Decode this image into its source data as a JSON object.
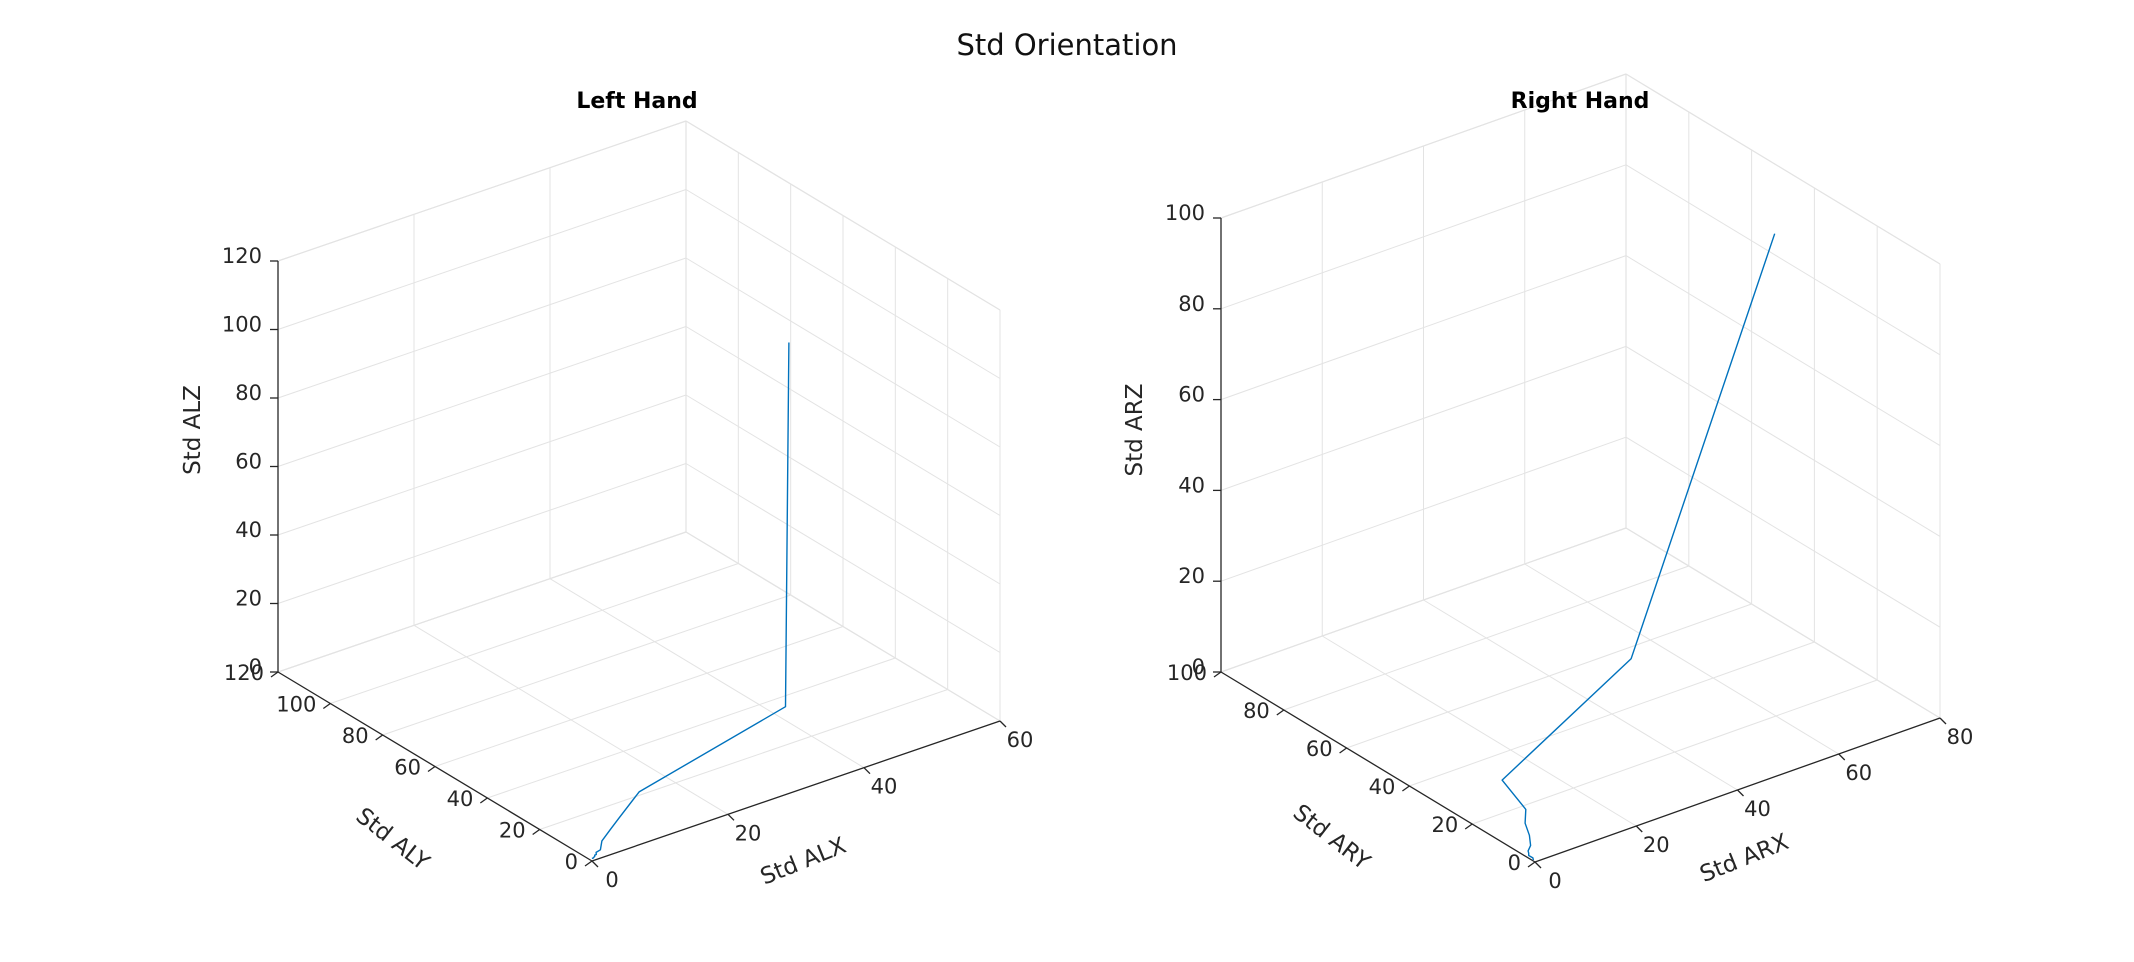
{
  "figure": {
    "title": "Std Orientation"
  },
  "chart_data": [
    {
      "type": "line3d",
      "title": "Left Hand",
      "xlabel": "Std ALX",
      "ylabel": "Std ALY",
      "zlabel": "Std ALZ",
      "xlim": [
        0,
        60
      ],
      "ylim": [
        0,
        120
      ],
      "zlim": [
        0,
        120
      ],
      "xticks": [
        0,
        20,
        40,
        60
      ],
      "yticks": [
        0,
        20,
        40,
        60,
        80,
        100,
        120
      ],
      "zticks": [
        0,
        20,
        40,
        60,
        80,
        100,
        120
      ],
      "grid": true,
      "color": "#0072BD",
      "series": [
        {
          "x": [
            0.3,
            0.4,
            0.8,
            0.9,
            1.1,
            1.3,
            2.0,
            3.0,
            5.0,
            7.0,
            12.5,
            40.0,
            40.5
          ],
          "y": [
            0.8,
            0.6,
            1.0,
            1.3,
            1.2,
            1.8,
            2.0,
            4.0,
            6.0,
            8.0,
            14.5,
            30.0,
            30.0
          ],
          "z": [
            0.2,
            0.3,
            0.4,
            0.5,
            0.6,
            0.8,
            1.0,
            2.0,
            3.0,
            4.0,
            5.0,
            4.0,
            110.0
          ]
        }
      ]
    },
    {
      "type": "line3d",
      "title": "Right Hand",
      "xlabel": "Std ARX",
      "ylabel": "Std ARY",
      "zlabel": "Std ARZ",
      "xlim": [
        0,
        80
      ],
      "ylim": [
        0,
        100
      ],
      "zlim": [
        0,
        100
      ],
      "xticks": [
        0,
        20,
        40,
        60,
        80
      ],
      "yticks": [
        0,
        20,
        40,
        60,
        80,
        100
      ],
      "zticks": [
        0,
        20,
        40,
        60,
        80,
        100
      ],
      "grid": true,
      "color": "#0072BD",
      "series": [
        {
          "x": [
            0.0,
            0.2,
            0.0,
            0.3,
            0.5,
            1.0,
            2.0,
            3.0,
            5.0,
            9.0,
            50.0,
            61.0
          ],
          "y": [
            0.5,
            1.0,
            2.0,
            2.5,
            3.0,
            3.0,
            5.0,
            8.0,
            11.0,
            25.0,
            50.0,
            22.0
          ],
          "z": [
            0.2,
            0.4,
            0.6,
            0.8,
            1.0,
            2.0,
            3.0,
            4.0,
            5.0,
            4.0,
            4.0,
            105.0
          ]
        }
      ]
    }
  ]
}
